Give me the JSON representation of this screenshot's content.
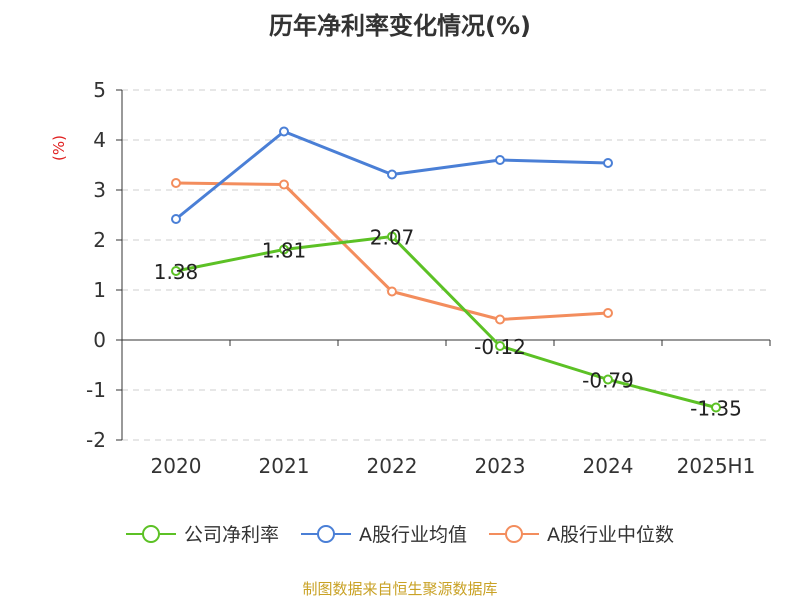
{
  "chart_data": {
    "type": "line",
    "title": "历年净利率变化情况(%)",
    "ylabel": "(%)",
    "categories": [
      "2020",
      "2021",
      "2022",
      "2023",
      "2024",
      "2025H1"
    ],
    "ylim": [
      -2,
      5
    ],
    "yticks": [
      5,
      4,
      3,
      2,
      1,
      0,
      -1,
      -2
    ],
    "grid": true,
    "legend_position": "bottom",
    "series": [
      {
        "name": "公司净利率",
        "color": "#5cc125",
        "values": [
          1.38,
          1.81,
          2.07,
          -0.12,
          -0.79,
          -1.35
        ],
        "labels": [
          "1.38",
          "1.81",
          "2.07",
          "-0.12",
          "-0.79",
          "-1.35"
        ]
      },
      {
        "name": "A股行业均值",
        "color": "#4a7fd6",
        "values": [
          2.42,
          4.17,
          3.31,
          3.6,
          3.54,
          null
        ]
      },
      {
        "name": "A股行业中位数",
        "color": "#f38d5d",
        "values": [
          3.14,
          3.11,
          0.97,
          0.41,
          0.54,
          null
        ]
      }
    ]
  },
  "source": "制图数据来自恒生聚源数据库"
}
